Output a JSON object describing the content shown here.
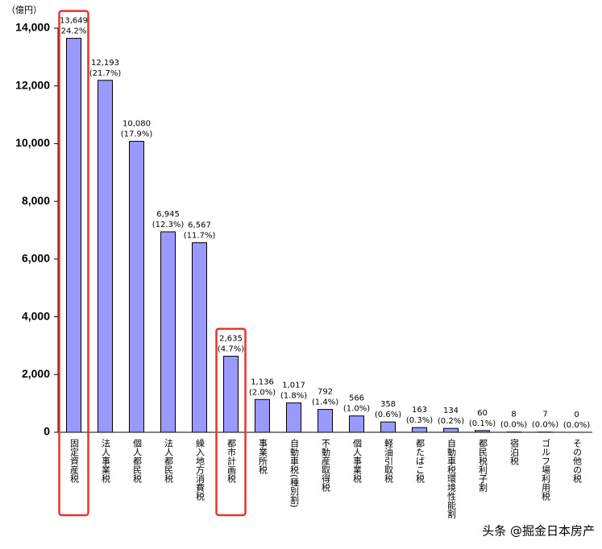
{
  "chart_data": {
    "type": "bar",
    "unit_label": "（億円）",
    "categories": [
      "固定資産税",
      "法人事業税",
      "個人都民税",
      "法人都民税",
      "繰入地方消費税",
      "都市計画税",
      "事業所税",
      "自動車税(種別割)",
      "不動産取得税",
      "個人事業税",
      "軽油引取税",
      "都たばこ税",
      "自動車税環境性能割",
      "都民税利子割",
      "宿泊税",
      "ゴルフ場利用税",
      "その他の税"
    ],
    "values": [
      13649,
      12193,
      10080,
      6945,
      6567,
      2635,
      1136,
      1017,
      792,
      566,
      358,
      163,
      134,
      60,
      8,
      7,
      0
    ],
    "value_labels": [
      "13,649",
      "12,193",
      "10,080",
      "6,945",
      "6,567",
      "2,635",
      "1,136",
      "1,017",
      "792",
      "566",
      "358",
      "163",
      "134",
      "60",
      "8",
      "7",
      "0"
    ],
    "share_labels": [
      "(24.2%)",
      "(21.7%)",
      "(17.9%)",
      "(12.3%)",
      "(11.7%)",
      "(4.7%)",
      "(2.0%)",
      "(1.8%)",
      "(1.4%)",
      "(1.0%)",
      "(0.6%)",
      "(0.3%)",
      "(0.2%)",
      "(0.1%)",
      "(0.0%)",
      "(0.0%)",
      "(0.0%)"
    ],
    "color": "#9999ff",
    "ylim": [
      0,
      14000
    ],
    "yticks": [
      0,
      {
        "value": 2000,
        "label": "2,000"
      },
      {
        "value": 4000,
        "label": "4,000"
      },
      {
        "value": 6000,
        "label": "6,000"
      },
      {
        "value": 8000,
        "label": "8,000"
      },
      {
        "value": 10000,
        "label": "10,000"
      },
      {
        "value": 12000,
        "label": "12,000"
      },
      {
        "value": 14000,
        "label": "14,000"
      }
    ],
    "grid": false,
    "highlight": [
      0,
      5
    ],
    "highlight_color": "#e8322d",
    "watermark": "头条 @掘金日本房产"
  }
}
